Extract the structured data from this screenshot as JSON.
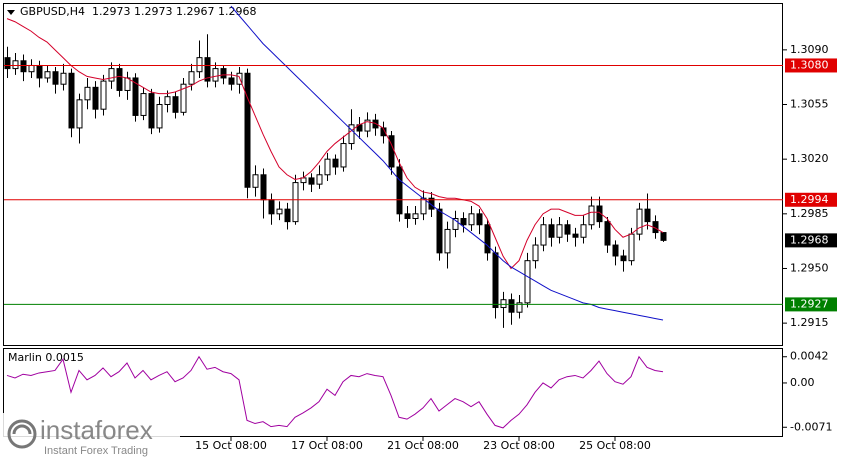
{
  "chart_data": [
    {
      "type": "candlestick",
      "title": "GBPUSD,H4",
      "categories": [
        null,
        null,
        null,
        null,
        null,
        null,
        null,
        null,
        null,
        null,
        null,
        null,
        null,
        null,
        null,
        null,
        null,
        null,
        null,
        null,
        null,
        null,
        null,
        null,
        null,
        null,
        null,
        null,
        "15 Oct 08:00",
        null,
        null,
        null,
        null,
        null,
        null,
        null,
        null,
        null,
        null,
        null,
        "17 Oct 08:00",
        null,
        null,
        null,
        null,
        null,
        null,
        null,
        null,
        null,
        null,
        null,
        "21 Oct 08:00",
        null,
        null,
        null,
        null,
        null,
        null,
        null,
        null,
        null,
        null,
        null,
        "23 Oct 08:00",
        null,
        null,
        null,
        null,
        null,
        null,
        null,
        null,
        null,
        null,
        null,
        "25 Oct 08:00",
        null,
        null,
        null,
        null,
        null,
        null
      ],
      "open": [
        1.3085,
        1.3078,
        1.3083,
        1.3076,
        1.308,
        1.3072,
        1.3076,
        1.3068,
        1.3075,
        1.304,
        1.3058,
        1.3066,
        1.3052,
        1.307,
        1.3078,
        1.3064,
        1.3072,
        1.3048,
        1.3062,
        1.304,
        1.3055,
        1.306,
        1.305,
        1.3068,
        1.3076,
        1.3085,
        1.307,
        1.3078,
        1.3072,
        1.3068,
        1.3075,
        1.3002,
        1.301,
        1.2994,
        1.2985,
        1.2988,
        1.298,
        1.3005,
        1.3008,
        1.3004,
        1.301,
        1.302,
        1.3015,
        1.303,
        1.3042,
        1.3038,
        1.3045,
        1.304,
        1.3035,
        1.3015,
        1.2985,
        1.2982,
        1.2985,
        1.2995,
        1.2988,
        1.296,
        1.2975,
        1.2982,
        1.2978,
        1.2985,
        1.2978,
        1.296,
        1.2925,
        1.293,
        1.2922,
        1.2928,
        1.2955,
        1.2965,
        1.2978,
        1.297,
        1.2978,
        1.2972,
        1.297,
        1.2978,
        1.299,
        1.298,
        1.2965,
        1.2958,
        1.2955,
        1.2972,
        1.2988,
        1.298,
        1.2973
      ],
      "high": [
        1.3092,
        1.3088,
        1.3087,
        1.3084,
        1.3083,
        1.308,
        1.3079,
        1.3081,
        1.3078,
        1.3062,
        1.3072,
        1.307,
        1.3074,
        1.3082,
        1.3081,
        1.3076,
        1.3075,
        1.3066,
        1.3065,
        1.306,
        1.3064,
        1.3063,
        1.3072,
        1.3081,
        1.3096,
        1.31,
        1.3082,
        1.308,
        1.3076,
        1.3079,
        1.3078,
        1.3016,
        1.3014,
        1.2998,
        1.2993,
        1.2992,
        1.301,
        1.3012,
        1.3011,
        1.3016,
        1.3024,
        1.3023,
        1.3035,
        1.3052,
        1.3047,
        1.305,
        1.3049,
        1.3044,
        1.3038,
        1.302,
        1.299,
        1.299,
        1.3,
        1.2999,
        1.2992,
        1.298,
        1.2987,
        1.2986,
        1.299,
        1.2988,
        1.2981,
        1.2964,
        1.2935,
        1.2934,
        1.2933,
        1.296,
        1.297,
        1.2983,
        1.2982,
        1.2983,
        1.2981,
        1.2976,
        1.2984,
        1.2996,
        1.2996,
        1.2983,
        1.2968,
        1.2962,
        1.2976,
        1.2992,
        1.2998,
        1.2984,
        1.2973
      ],
      "low": [
        1.3072,
        1.3074,
        1.307,
        1.3072,
        1.3066,
        1.3069,
        1.3062,
        1.3064,
        1.3034,
        1.303,
        1.3052,
        1.3046,
        1.3048,
        1.3065,
        1.306,
        1.3058,
        1.3044,
        1.3045,
        1.3036,
        1.3037,
        1.305,
        1.3046,
        1.3048,
        1.3064,
        1.3072,
        1.3066,
        1.3066,
        1.3068,
        1.3064,
        1.3062,
        1.2995,
        1.2996,
        1.2982,
        1.2978,
        1.2981,
        1.2975,
        1.2978,
        1.3,
        1.2999,
        1.3001,
        1.3006,
        1.301,
        1.3012,
        1.3026,
        1.3033,
        1.3034,
        1.3035,
        1.303,
        1.301,
        1.298,
        1.2976,
        1.2978,
        1.2981,
        1.2983,
        1.2955,
        1.295,
        1.297,
        1.2973,
        1.2974,
        1.2972,
        1.2955,
        1.2918,
        1.2912,
        1.2914,
        1.2918,
        1.2925,
        1.295,
        1.2961,
        1.2964,
        1.2966,
        1.2967,
        1.2964,
        1.2966,
        1.2975,
        1.2976,
        1.296,
        1.2952,
        1.2948,
        1.2952,
        1.2968,
        1.2975,
        1.2969,
        1.2967
      ],
      "close": [
        1.3078,
        1.3083,
        1.3076,
        1.308,
        1.3072,
        1.3076,
        1.3068,
        1.3075,
        1.304,
        1.3058,
        1.3066,
        1.3052,
        1.307,
        1.3078,
        1.3064,
        1.3072,
        1.3048,
        1.3062,
        1.304,
        1.3055,
        1.306,
        1.305,
        1.3068,
        1.3076,
        1.3085,
        1.307,
        1.3078,
        1.3072,
        1.3068,
        1.3075,
        1.3002,
        1.301,
        1.2994,
        1.2985,
        1.2988,
        1.298,
        1.3005,
        1.3008,
        1.3004,
        1.301,
        1.302,
        1.3015,
        1.303,
        1.3042,
        1.3038,
        1.3045,
        1.304,
        1.3035,
        1.3015,
        1.2985,
        1.2982,
        1.2985,
        1.2995,
        1.2988,
        1.296,
        1.2975,
        1.2982,
        1.2978,
        1.2985,
        1.2978,
        1.296,
        1.2925,
        1.293,
        1.2922,
        1.2928,
        1.2955,
        1.2965,
        1.2978,
        1.297,
        1.2978,
        1.2972,
        1.297,
        1.2978,
        1.299,
        1.298,
        1.2965,
        1.2958,
        1.2955,
        1.2972,
        1.2988,
        1.298,
        1.2973,
        1.2968
      ],
      "series": [
        {
          "color": "#d4002a",
          "values": [
            1.311,
            1.3108,
            1.3105,
            1.3102,
            1.3098,
            1.3095,
            1.309,
            1.3085,
            1.308,
            1.3076,
            1.3073,
            1.3072,
            1.3071,
            1.3072,
            1.3073,
            1.3072,
            1.3069,
            1.3066,
            1.3063,
            1.3062,
            1.3062,
            1.3063,
            1.3065,
            1.3067,
            1.307,
            1.3072,
            1.3073,
            1.3074,
            1.3074,
            1.3073,
            1.306,
            1.3048,
            1.3036,
            1.3025,
            1.3015,
            1.301,
            1.3007,
            1.3008,
            1.3012,
            1.3018,
            1.3025,
            1.303,
            1.3034,
            1.3038,
            1.3042,
            1.3044,
            1.3043,
            1.304,
            1.303,
            1.3018,
            1.3008,
            1.3002,
            1.2999,
            1.2998,
            1.2996,
            1.2995,
            1.2995,
            1.2994,
            1.2993,
            1.299,
            1.2982,
            1.297,
            1.2958,
            1.295,
            1.2955,
            1.2968,
            1.2978,
            1.2985,
            1.2988,
            1.2988,
            1.2986,
            1.2984,
            1.2984,
            1.2986,
            1.2986,
            1.2982,
            1.2975,
            1.297,
            1.2972,
            1.2976,
            1.2978,
            1.2976,
            1.2973
          ]
        },
        {
          "color": "#1010c8",
          "values": [
            null,
            null,
            null,
            null,
            null,
            null,
            null,
            null,
            null,
            null,
            null,
            null,
            null,
            null,
            null,
            null,
            null,
            null,
            null,
            null,
            null,
            null,
            null,
            null,
            null,
            null,
            null,
            null,
            1.3118,
            1.3112,
            1.3106,
            1.31,
            1.3094,
            1.3089,
            1.3084,
            1.3079,
            1.3074,
            1.3069,
            1.3064,
            1.3059,
            1.3054,
            1.3049,
            1.3044,
            1.3039,
            1.3034,
            1.3029,
            1.3024,
            1.3019,
            1.3013,
            1.3007,
            1.3003,
            1.2999,
            1.2995,
            1.2991,
            1.2987,
            1.2984,
            1.2981,
            1.2977,
            1.2973,
            1.2969,
            1.2965,
            1.296,
            1.2955,
            1.2951,
            1.2948,
            1.2945,
            1.2942,
            1.2939,
            1.2936,
            1.2934,
            1.2932,
            1.293,
            1.2928,
            1.2927,
            1.2925,
            1.2924,
            1.2923,
            1.2922,
            1.2921,
            1.292,
            1.2919,
            1.2918,
            1.2917
          ]
        }
      ],
      "levels": [
        {
          "value": 1.308,
          "label": "1.3080",
          "color": "#e00000"
        },
        {
          "value": 1.2994,
          "label": "1.2994",
          "color": "#e00000"
        },
        {
          "value": 1.2927,
          "label": "1.2927",
          "color": "#008000"
        }
      ],
      "ylim": [
        1.2901,
        1.312
      ],
      "yticks": [
        {
          "value": 1.309,
          "label": "1.3090"
        },
        1.3055,
        {
          "value": 1.302,
          "label": "1.3020"
        },
        1.2985,
        {
          "value": 1.295,
          "label": "1.2950"
        },
        1.2915
      ],
      "grid": false
    },
    {
      "type": "line",
      "title": "Marlin 0.0015",
      "color": "#a000a0",
      "values": [
        0.0012,
        0.0008,
        0.0014,
        0.0012,
        0.0016,
        0.0018,
        0.002,
        0.0038,
        -0.0015,
        0.002,
        0.0005,
        0.0012,
        0.0024,
        0.001,
        0.0018,
        0.0032,
        0.0008,
        0.002,
        0.0005,
        0.0012,
        0.0018,
        0.0002,
        0.0008,
        0.002,
        0.0042,
        0.0022,
        0.0025,
        0.0018,
        0.0015,
        0.0005,
        -0.006,
        -0.0065,
        -0.0062,
        -0.007,
        -0.0068,
        -0.007,
        -0.0055,
        -0.0048,
        -0.004,
        -0.003,
        -0.001,
        -0.002,
        0.0002,
        0.0012,
        0.001,
        0.0015,
        0.0012,
        0.001,
        -0.002,
        -0.0055,
        -0.0058,
        -0.005,
        -0.004,
        -0.0025,
        -0.0045,
        -0.0035,
        -0.0025,
        -0.003,
        -0.0038,
        -0.003,
        -0.005,
        -0.0068,
        -0.0072,
        -0.006,
        -0.005,
        -0.0035,
        -0.0015,
        0.0,
        -0.0008,
        0.0005,
        0.001,
        0.0012,
        0.0008,
        0.002,
        0.0035,
        0.0015,
        0.0002,
        -0.0002,
        0.001,
        0.0042,
        0.0025,
        0.002,
        0.0018
      ],
      "ylim": [
        -0.0085,
        0.0056
      ],
      "yticks": [
        0.0042,
        {
          "value": 0,
          "label": "0.00"
        },
        -0.0071
      ]
    }
  ],
  "watermark": {
    "brand": "instaforex",
    "tagline": "Instant Forex Trading"
  }
}
